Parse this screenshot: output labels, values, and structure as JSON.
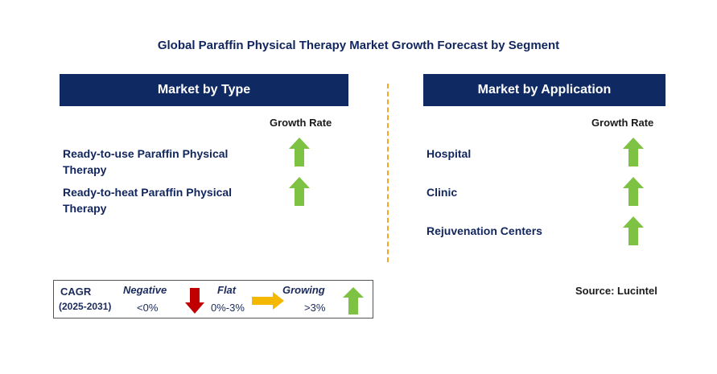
{
  "title": "Global Paraffin Physical Therapy Market Growth Forecast by Segment",
  "left_panel": {
    "header": "Market by Type",
    "growth_rate_label": "Growth Rate",
    "segments": [
      {
        "line1": "Ready-to-use Paraffin Physical",
        "line2": "Therapy",
        "trend": "growing"
      },
      {
        "line1": "Ready-to-heat Paraffin Physical",
        "line2": "Therapy",
        "trend": "growing"
      }
    ]
  },
  "right_panel": {
    "header": "Market by Application",
    "growth_rate_label": "Growth Rate",
    "segments": [
      {
        "label": "Hospital",
        "trend": "growing"
      },
      {
        "label": "Clinic",
        "trend": "growing"
      },
      {
        "label": "Rejuvenation Centers",
        "trend": "growing"
      }
    ]
  },
  "legend": {
    "cagr_label": "CAGR",
    "period": "(2025-2031)",
    "negative_label": "Negative",
    "negative_range": "<0%",
    "flat_label": "Flat",
    "flat_range": "0%-3%",
    "growing_label": "Growing",
    "growing_range": ">3%"
  },
  "source": "Source: Lucintel",
  "colors": {
    "header_bg": "#0f2a62",
    "growing": "#7dc242",
    "negative": "#c00000",
    "flat": "#f5b800",
    "divider": "#f5a623"
  }
}
